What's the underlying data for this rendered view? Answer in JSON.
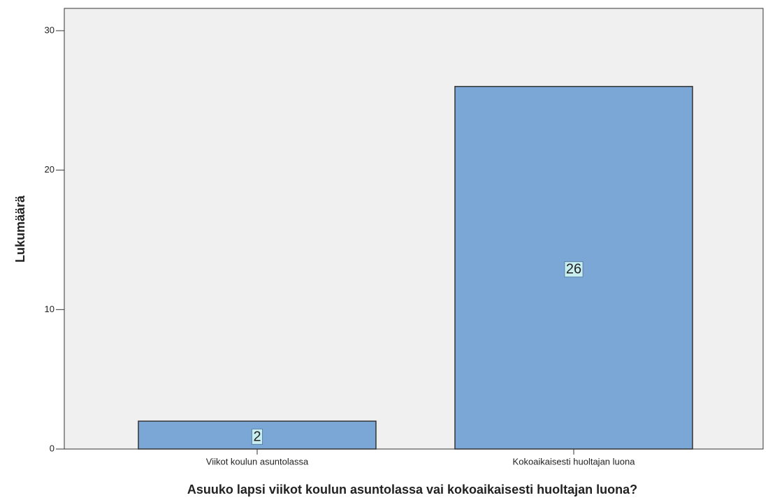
{
  "chart_data": {
    "type": "bar",
    "x_label": "Asuuko lapsi viikot koulun asuntolassa vai kokoaikaisesti huoltajan luona?",
    "y_label": "Lukumäärä",
    "categories": [
      "Viikot koulun asuntolassa",
      "Kokoaikaisesti huoltajan luona"
    ],
    "values": [
      2,
      26
    ],
    "color": "#7ba7d6",
    "ylim": [
      0,
      31.6
    ],
    "yticks": [
      0,
      10,
      20,
      30
    ],
    "grid": false,
    "data_labels": true
  }
}
